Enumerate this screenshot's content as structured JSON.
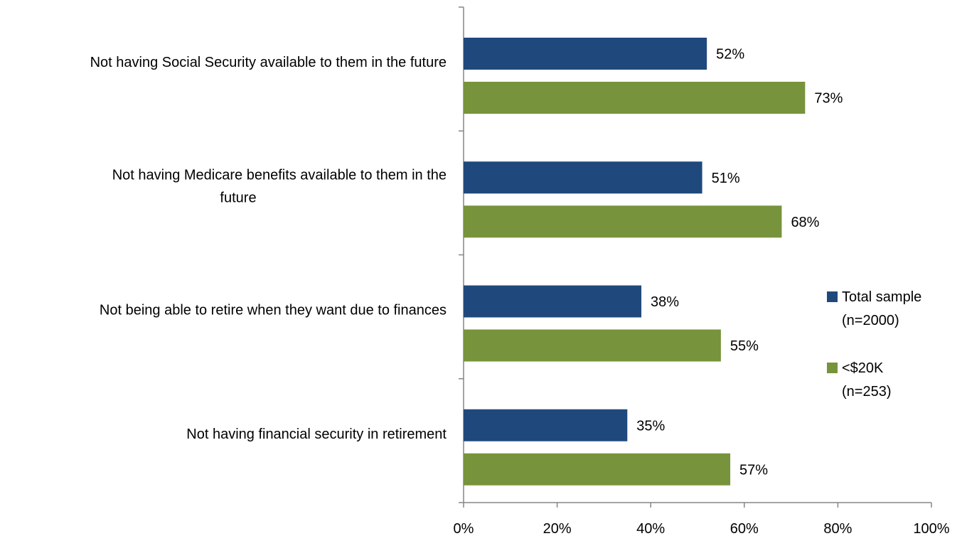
{
  "chart_data": {
    "type": "bar",
    "orientation": "horizontal",
    "categories": [
      [
        "Not having Social Security available to them in the future"
      ],
      [
        "Not having Medicare benefits available to them in the",
        "future"
      ],
      [
        "Not being able to retire when they want due to finances"
      ],
      [
        "Not having financial security in retirement"
      ]
    ],
    "series": [
      {
        "name": [
          "Total sample",
          "(n=2000)"
        ],
        "color": "#1f497d",
        "values": [
          52,
          51,
          38,
          35
        ],
        "value_labels": [
          "52%",
          "51%",
          "38%",
          "35%"
        ]
      },
      {
        "name": [
          "<$20K",
          "(n=253)"
        ],
        "color": "#77933c",
        "values": [
          73,
          68,
          55,
          57
        ],
        "value_labels": [
          "73%",
          "68%",
          "55%",
          "57%"
        ]
      }
    ],
    "xlim": [
      0,
      100
    ],
    "x_ticks": [
      0,
      20,
      40,
      60,
      80,
      100
    ],
    "x_tick_labels": [
      "0%",
      "20%",
      "40%",
      "60%",
      "80%",
      "100%"
    ],
    "grid": false,
    "legend_position": "right"
  }
}
